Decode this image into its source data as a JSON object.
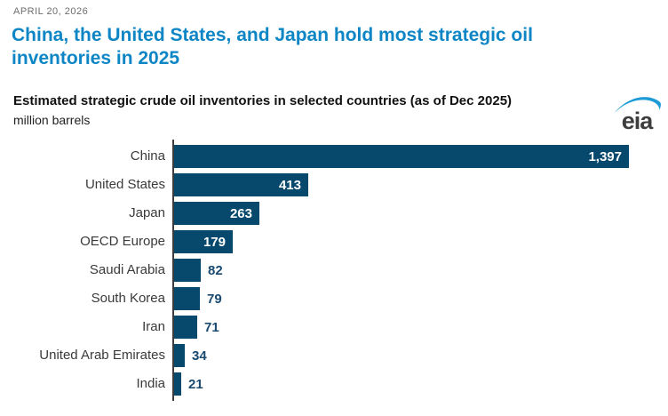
{
  "page": {
    "date": "APRIL 20, 2026",
    "title": "China, the United States, and Japan hold most strategic oil inventories in 2025",
    "title_lines": [
      "China, the United States, and Japan hold most strategic oil",
      "inventories in 2025"
    ]
  },
  "logo": {
    "text": "eia"
  },
  "colors": {
    "headline": "#0e86c5",
    "bar": "#07496c",
    "value_inside": "#ffffff",
    "value_outside": "#1a4a70",
    "swoosh": "#1e9ad6",
    "axis": "#3d3d3d"
  },
  "chart_data": {
    "type": "bar",
    "orientation": "horizontal",
    "title": "Estimated strategic crude oil inventories in selected countries (as of Dec 2025)",
    "xlabel": "million barrels",
    "ylabel": "",
    "categories": [
      "China",
      "United States",
      "Japan",
      "OECD Europe",
      "Saudi Arabia",
      "South Korea",
      "Iran",
      "United Arab Emirates",
      "India"
    ],
    "values": [
      1397,
      413,
      263,
      179,
      82,
      79,
      71,
      34,
      21
    ],
    "value_labels": [
      "1,397",
      "413",
      "263",
      "179",
      "82",
      "79",
      "71",
      "34",
      "21"
    ],
    "xlim": [
      0,
      1397
    ],
    "grid": false,
    "legend": false,
    "bar_color": "#07496c"
  }
}
